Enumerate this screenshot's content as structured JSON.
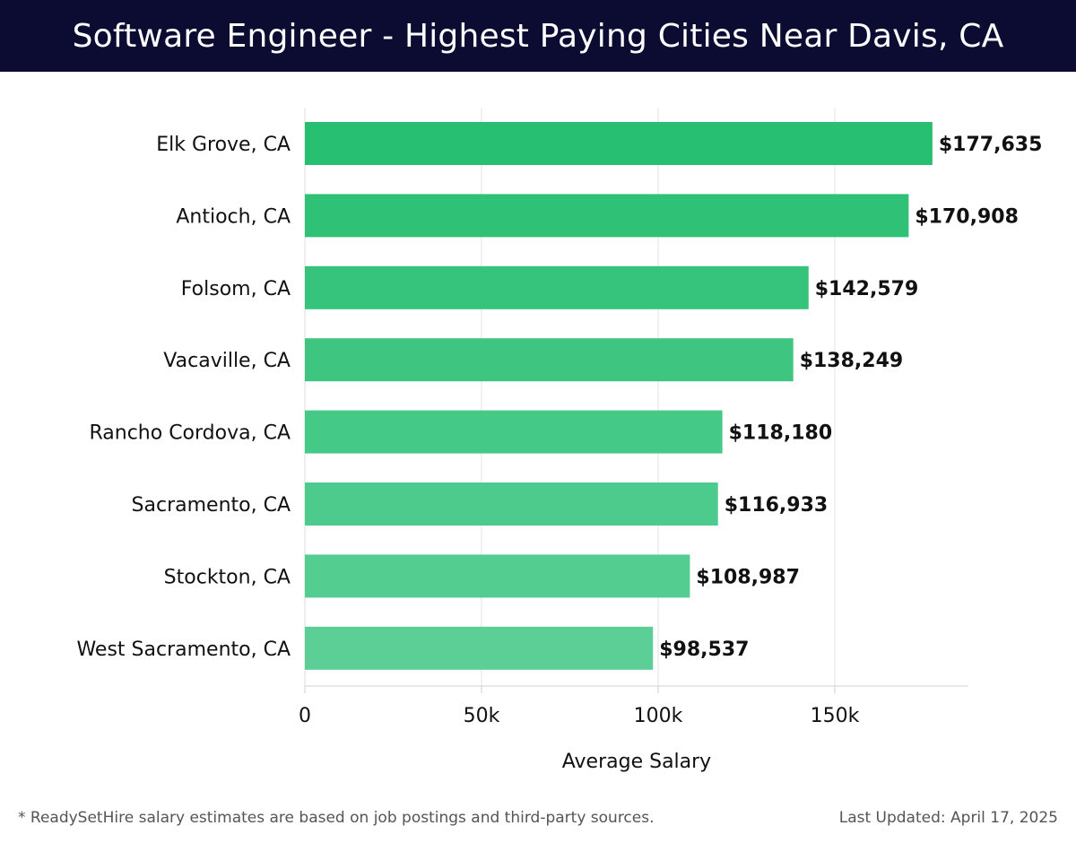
{
  "header": {
    "title": "Software Engineer - Highest Paying Cities Near Davis, CA"
  },
  "footer": {
    "note": "* ReadySetHire salary estimates are based on job postings and third-party sources.",
    "updated": "Last Updated: April 17, 2025"
  },
  "colors": {
    "header_bg": "#0c0c33",
    "bar_top": "#27c072",
    "bar_bottom": "#5ccf96"
  },
  "chart_data": {
    "type": "bar",
    "orientation": "horizontal",
    "categories": [
      "Elk Grove, CA",
      "Antioch, CA",
      "Folsom, CA",
      "Vacaville, CA",
      "Rancho Cordova, CA",
      "Sacramento, CA",
      "Stockton, CA",
      "West Sacramento, CA"
    ],
    "values": [
      177635,
      170908,
      142579,
      138249,
      118180,
      116933,
      108987,
      98537
    ],
    "value_labels": [
      "$177,635",
      "$170,908",
      "$142,579",
      "$138,249",
      "$118,180",
      "$116,933",
      "$108,987",
      "$98,537"
    ],
    "xlabel": "Average Salary",
    "xlim": [
      0,
      187000
    ],
    "xticks": [
      0,
      50000,
      100000,
      150000
    ],
    "xtick_labels": [
      "0",
      "50k",
      "100k",
      "150k"
    ],
    "grid": true
  }
}
